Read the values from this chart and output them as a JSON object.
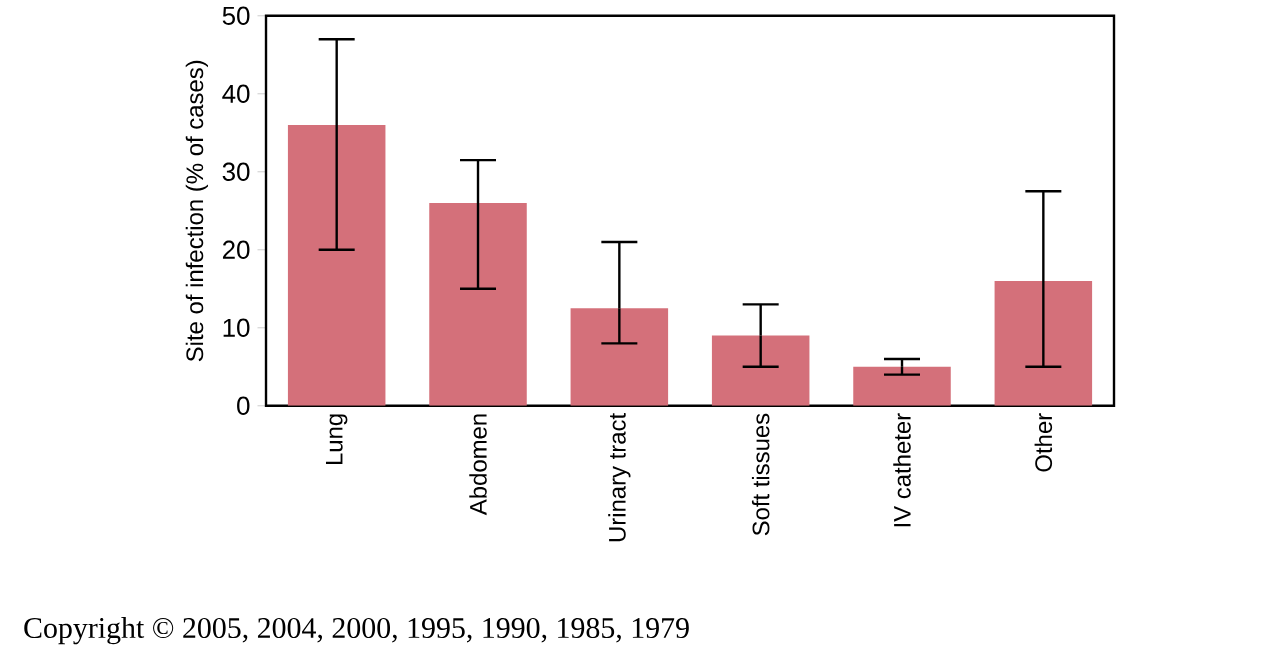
{
  "chart_data": {
    "type": "bar",
    "ylabel": "Site of infection (% of cases)",
    "categories": [
      "Lung",
      "Abdomen",
      "Urinary tract",
      "Soft tissues",
      "IV catheter",
      "Other"
    ],
    "values": [
      36,
      26,
      12.5,
      9,
      5,
      16
    ],
    "errors": [
      [
        20,
        47
      ],
      [
        15,
        31.5
      ],
      [
        8,
        21
      ],
      [
        5,
        13
      ],
      [
        4,
        6
      ],
      [
        5,
        27.5
      ]
    ],
    "color": "#d4707a",
    "ylim": [
      0,
      50
    ],
    "yticks": [
      0,
      10,
      20,
      30,
      40,
      50
    ],
    "grid": false,
    "annotations": [
      "Copyright © 2005, 2004, 2000, 1995, 1990, 1985, 1979"
    ]
  }
}
